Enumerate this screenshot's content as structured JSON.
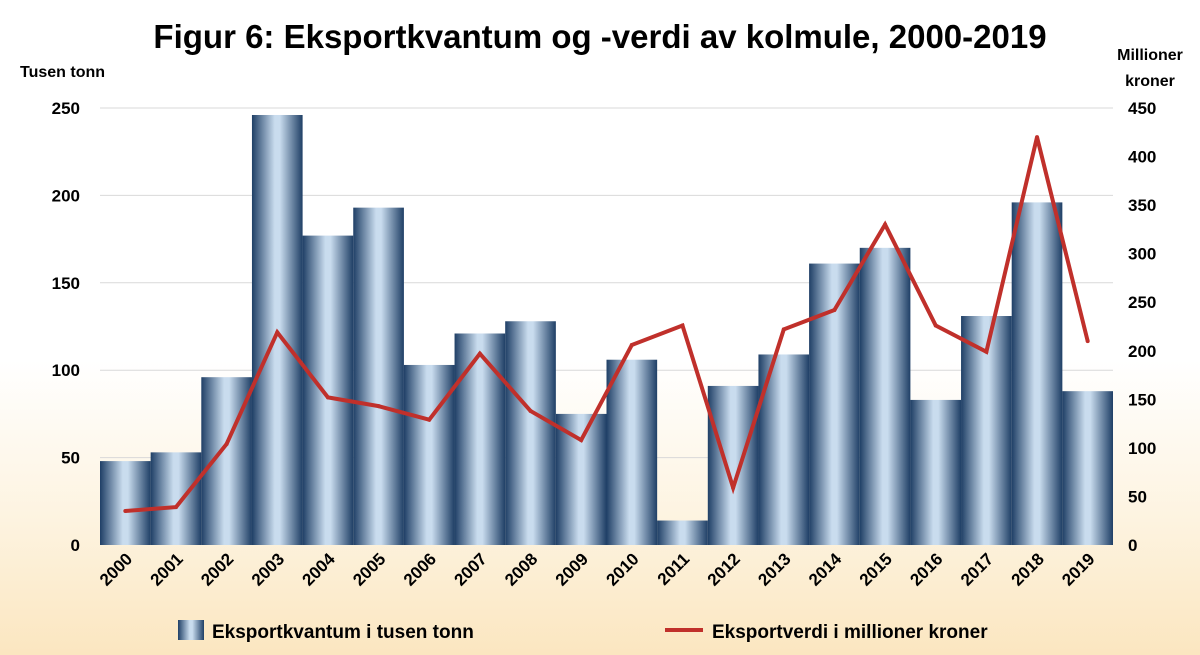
{
  "chart_data": {
    "type": "bar",
    "title": "Figur 6: Eksportkvantum og -verdi av kolmule, 2000-2019",
    "ylabel_left": "Tusen tonn",
    "ylabel_right_line1": "Millioner",
    "ylabel_right_line2": "kroner",
    "ylim_left": [
      0,
      250
    ],
    "ylim_right": [
      0,
      450
    ],
    "yticks_left": [
      0,
      50,
      100,
      150,
      200,
      250
    ],
    "yticks_right": [
      0,
      50,
      100,
      150,
      200,
      250,
      300,
      350,
      400,
      450
    ],
    "categories": [
      "2000",
      "2001",
      "2002",
      "2003",
      "2004",
      "2005",
      "2006",
      "2007",
      "2008",
      "2009",
      "2010",
      "2011",
      "2012",
      "2013",
      "2014",
      "2015",
      "2016",
      "2017",
      "2018",
      "2019"
    ],
    "series": [
      {
        "name": "Eksportkvantum i tusen tonn",
        "type": "bar",
        "axis": "left",
        "color": "#1f3f66",
        "values": [
          48,
          53,
          96,
          246,
          177,
          193,
          103,
          121,
          128,
          75,
          106,
          14,
          91,
          109,
          161,
          170,
          83,
          131,
          196,
          88
        ]
      },
      {
        "name": "Eksportverdi i millioner kroner",
        "type": "line",
        "axis": "right",
        "color": "#c0302b",
        "values": [
          35,
          39,
          104,
          219,
          152,
          143,
          129,
          197,
          138,
          108,
          206,
          226,
          59,
          222,
          242,
          330,
          226,
          199,
          420,
          210
        ]
      }
    ],
    "grid": true,
    "legend": "bottom"
  }
}
